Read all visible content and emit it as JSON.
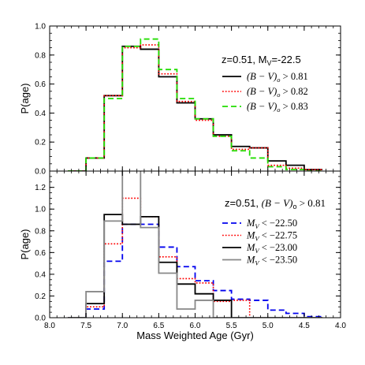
{
  "chart_data": [
    {
      "type": "step-histogram",
      "xlabel": "",
      "ylabel": "P(age)",
      "xlim": [
        8.0,
        4.0
      ],
      "ylim": [
        0.0,
        1.0
      ],
      "x_reversed": true,
      "yticks": [
        "0.0",
        "0.2",
        "0.4",
        "0.6",
        "0.8",
        "1.0"
      ],
      "ytick_values": [
        0.0,
        0.2,
        0.4,
        0.6,
        0.8,
        1.0
      ],
      "annotation": "z=0.51, M",
      "annotation_sub": "V",
      "annotation_tail": "=-22.5",
      "bin_edges": [
        7.75,
        7.5,
        7.25,
        7.0,
        6.75,
        6.5,
        6.25,
        6.0,
        5.75,
        5.5,
        5.25,
        5.0,
        4.75,
        4.5
      ],
      "series": [
        {
          "name": "(B − V)o > 0.81",
          "color": "#000000",
          "dash": "solid",
          "values": [
            0.0,
            0.09,
            0.52,
            0.86,
            0.84,
            0.65,
            0.47,
            0.36,
            0.25,
            0.17,
            0.16,
            0.07,
            0.04,
            0.01
          ]
        },
        {
          "name": "(B − V)o > 0.82",
          "color": "#ff0000",
          "dash": "dotted",
          "values": [
            0.0,
            0.09,
            0.52,
            0.85,
            0.87,
            0.67,
            0.48,
            0.35,
            0.24,
            0.15,
            0.16,
            0.04,
            0.02,
            0.01
          ]
        },
        {
          "name": "(B − V)o > 0.83",
          "color": "#22dd00",
          "dash": "dashed",
          "values": [
            0.0,
            0.09,
            0.5,
            0.86,
            0.91,
            0.7,
            0.5,
            0.36,
            0.24,
            0.14,
            0.09,
            0.03,
            0.01,
            0.0
          ]
        }
      ],
      "legend": [
        {
          "prefix": "(B − V)",
          "sub": "o",
          "suffix": " > 0.81"
        },
        {
          "prefix": "(B − V)",
          "sub": "o",
          "suffix": " > 0.82"
        },
        {
          "prefix": "(B − V)",
          "sub": "o",
          "suffix": " > 0.83"
        }
      ]
    },
    {
      "type": "step-histogram",
      "xlabel": "Mass Weighted Age (Gyr)",
      "ylabel": "P(age)",
      "xlim": [
        8.0,
        4.0
      ],
      "ylim": [
        0.0,
        1.35
      ],
      "x_reversed": true,
      "xticks": [
        "8.0",
        "7.5",
        "7.0",
        "6.5",
        "6.0",
        "5.5",
        "5.0",
        "4.5",
        "4.0"
      ],
      "xtick_values": [
        8.0,
        7.5,
        7.0,
        6.5,
        6.0,
        5.5,
        5.0,
        4.5,
        4.0
      ],
      "yticks": [
        "0.0",
        "0.2",
        "0.4",
        "0.6",
        "0.8",
        "1.0",
        "1.2"
      ],
      "ytick_values": [
        0.0,
        0.2,
        0.4,
        0.6,
        0.8,
        1.0,
        1.2
      ],
      "annotation": "z=0.51, ",
      "annotation_math": "(B − V)",
      "annotation_sub": "o",
      "annotation_tail": "> 0.81",
      "bin_edges": [
        7.75,
        7.5,
        7.25,
        7.0,
        6.75,
        6.5,
        6.25,
        6.0,
        5.75,
        5.5,
        5.25,
        5.0,
        4.75,
        4.5
      ],
      "series": [
        {
          "name": "MV < −22.50",
          "color": "#0000ee",
          "dash": "dashed",
          "values": [
            0.0,
            0.08,
            0.52,
            0.86,
            0.86,
            0.65,
            0.47,
            0.34,
            0.25,
            0.17,
            0.16,
            0.07,
            0.04,
            0.01
          ]
        },
        {
          "name": "MV < −22.75",
          "color": "#ff0000",
          "dash": "dotted",
          "values": [
            0.0,
            0.1,
            0.68,
            1.1,
            0.93,
            0.56,
            0.36,
            0.32,
            0.15,
            0.16,
            0.0,
            0.0,
            0.0,
            0.0
          ]
        },
        {
          "name": "MV < −23.00",
          "color": "#000000",
          "dash": "solid",
          "values": [
            0.0,
            0.13,
            0.95,
            0.86,
            0.93,
            0.51,
            0.31,
            0.22,
            0.16,
            0.0,
            0.0,
            0.0,
            0.0,
            0.0
          ]
        },
        {
          "name": "MV < −23.50",
          "color": "#888888",
          "dash": "solid",
          "values": [
            0.0,
            0.24,
            0.89,
            1.36,
            0.83,
            0.41,
            0.08,
            0.16,
            0.0,
            0.0,
            0.0,
            0.0,
            0.0,
            0.0
          ]
        }
      ],
      "legend": [
        {
          "prefix": "M",
          "sub": "V",
          "suffix": " < −22.50"
        },
        {
          "prefix": "M",
          "sub": "V",
          "suffix": " < −22.75"
        },
        {
          "prefix": "M",
          "sub": "V",
          "suffix": " < −23.00"
        },
        {
          "prefix": "M",
          "sub": "V",
          "suffix": " < −23.50"
        }
      ]
    }
  ]
}
